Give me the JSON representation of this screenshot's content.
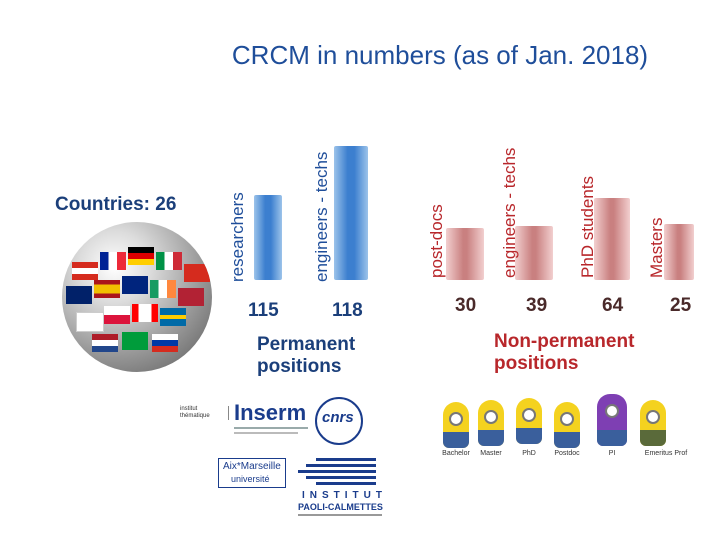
{
  "title": "CRCM in numbers (as of Jan. 2018)",
  "countries": {
    "label": "Countries: 26",
    "count": 26
  },
  "permanent": {
    "group_label_line1": "Permanent",
    "group_label_line2": "positions",
    "bars": [
      {
        "label": "researchers",
        "value": 115
      },
      {
        "label": "engineers - techs",
        "value": 118
      }
    ]
  },
  "non_permanent": {
    "group_label_line1": "Non-permanent",
    "group_label_line2": "positions",
    "bars": [
      {
        "label": "post-docs",
        "value": 30
      },
      {
        "label": "engineers - techs",
        "value": 39
      },
      {
        "label": "PhD students",
        "value": 64
      },
      {
        "label": "Masters",
        "value": 25
      }
    ]
  },
  "logos": {
    "inserm": "Inserm",
    "cnrs": "cnrs",
    "amu_line1": "Aix*Marseille",
    "amu_line2": "université",
    "ipc_line1": "INSTITUT",
    "ipc_line2": "PAOLI-CALMETTES"
  },
  "minions": [
    "Bachelor",
    "Master",
    "PhD",
    "Postdoc",
    "PI",
    "Emeritus Prof"
  ],
  "colors": {
    "blue": "#3c7fcf",
    "red": "#c98080",
    "title": "#1f4e9a"
  }
}
